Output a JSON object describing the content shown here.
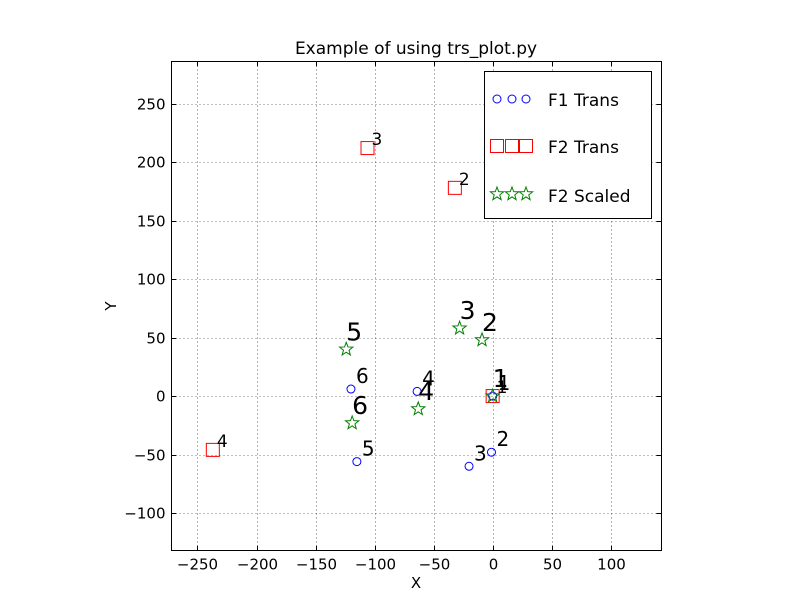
{
  "chart_data": {
    "type": "scatter",
    "title": "Example of using trs_plot.py",
    "xlabel": "X",
    "ylabel": "Y",
    "xlim": [
      -272,
      143
    ],
    "ylim": [
      -132,
      286
    ],
    "xticks": [
      -250,
      -200,
      -150,
      -100,
      -50,
      0,
      50,
      100
    ],
    "yticks": [
      -100,
      -50,
      0,
      50,
      100,
      150,
      200,
      250
    ],
    "grid": true,
    "legend_position": "top-right",
    "series": [
      {
        "name": "F1 Trans",
        "marker": "circle",
        "color": "#0000ff",
        "points": [
          {
            "label": "1",
            "x": 0,
            "y": 0
          },
          {
            "label": "2",
            "x": -1,
            "y": -48
          },
          {
            "label": "3",
            "x": -20,
            "y": -60
          },
          {
            "label": "4",
            "x": -64,
            "y": 4
          },
          {
            "label": "5",
            "x": -115,
            "y": -56
          },
          {
            "label": "6",
            "x": -120,
            "y": 6
          }
        ]
      },
      {
        "name": "F2 Trans",
        "marker": "square",
        "color": "#ff0000",
        "points": [
          {
            "label": "1",
            "x": 0,
            "y": 0
          },
          {
            "label": "2",
            "x": -32,
            "y": 178
          },
          {
            "label": "3",
            "x": -106,
            "y": 212
          },
          {
            "label": "4",
            "x": -237,
            "y": -46
          }
        ]
      },
      {
        "name": "F2 Scaled",
        "marker": "star",
        "color": "#008000",
        "points": [
          {
            "label": "1",
            "x": 0,
            "y": 0
          },
          {
            "label": "2",
            "x": -9,
            "y": 48
          },
          {
            "label": "3",
            "x": -28,
            "y": 58
          },
          {
            "label": "4",
            "x": -63,
            "y": -11
          },
          {
            "label": "5",
            "x": -124,
            "y": 40
          },
          {
            "label": "6",
            "x": -119,
            "y": -23
          }
        ]
      }
    ]
  }
}
